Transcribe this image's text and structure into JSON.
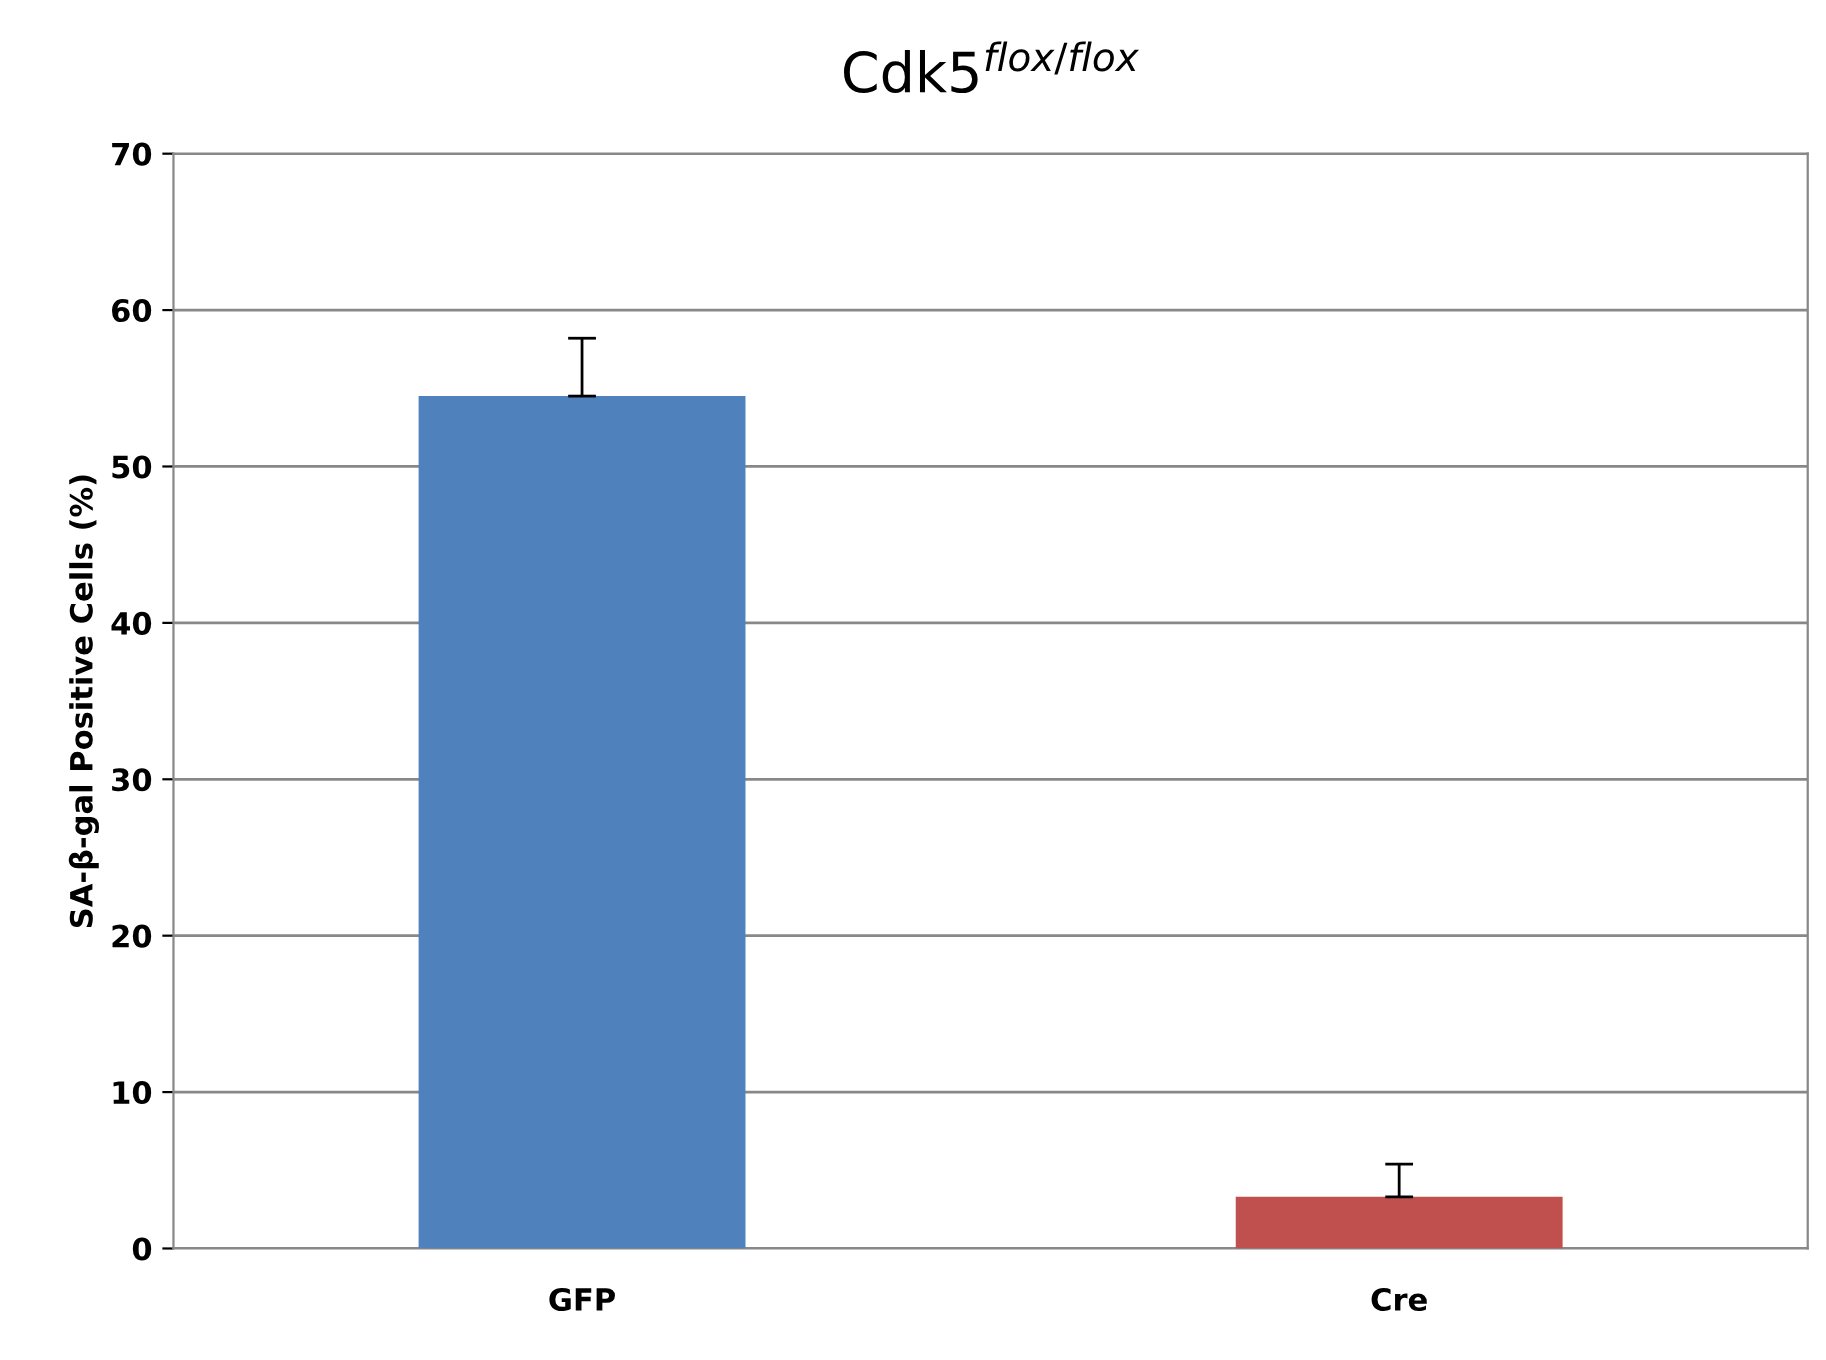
{
  "chart_data": {
    "type": "bar",
    "title": "Cdk5$^{flox/flox}$",
    "ylabel": "SA-β-gal Positive Cells (%)",
    "categories": [
      "GFP",
      "Cre"
    ],
    "values": [
      54.5,
      3.3
    ],
    "colors": [
      "#4f81bd",
      "#c0504d"
    ],
    "errors": [
      [
        54.5,
        58.2
      ],
      [
        3.3,
        5.4
      ]
    ],
    "ylim": [
      0,
      70
    ],
    "yticks": [
      0,
      10,
      20,
      30,
      40,
      50,
      60,
      70
    ],
    "grid": "y",
    "legend": false
  }
}
